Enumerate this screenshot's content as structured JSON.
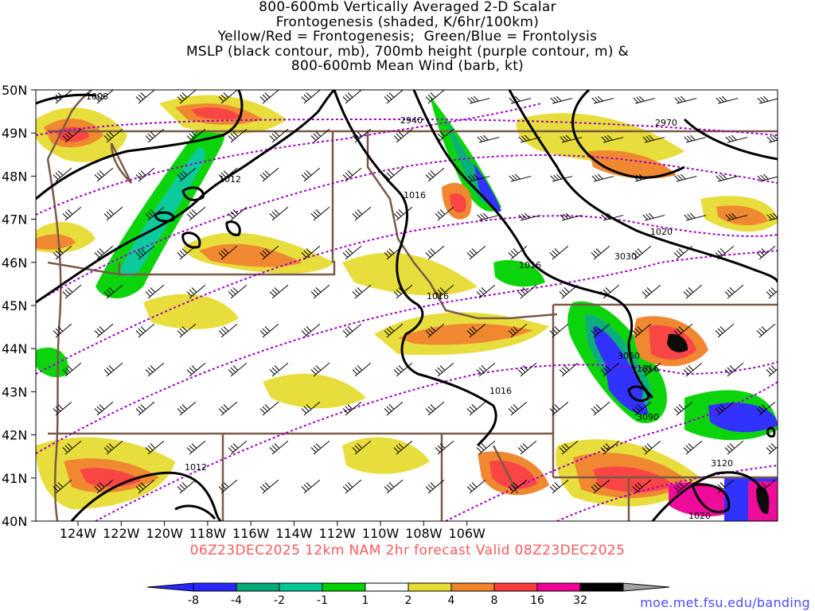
{
  "title_lines": [
    "800-600mb Vertically Averaged 2-D Scalar",
    "Frontogenesis (shaded, K/6hr/100km)",
    "Yellow/Red = Frontogenesis;  Green/Blue = Frontolysis",
    "MSLP (black contour, mb), 700mb height (purple contour, m) &",
    "800-600mb Mean Wind (barb, kt)"
  ],
  "subtitle": "06Z23DEC2025 12km NAM 2hr forecast Valid 08Z23DEC2025",
  "credit": "moe.met.fsu.edu/banding",
  "lat_labels": [
    "50N",
    "49N",
    "48N",
    "47N",
    "46N",
    "45N",
    "44N",
    "43N",
    "42N",
    "41N",
    "40N"
  ],
  "lon_labels": [
    "124W",
    "122W",
    "120W",
    "118W",
    "116W",
    "114W",
    "112W",
    "110W",
    "108W",
    "106W"
  ],
  "mslp_labels": [
    "1008",
    "1012",
    "1016",
    "1016",
    "1016",
    "1016",
    "1016",
    "1020",
    "1020",
    "1012"
  ],
  "height_labels": [
    "2940",
    "2970",
    "3030",
    "3060",
    "3090",
    "3120"
  ],
  "colorbar": {
    "ticks": [
      "-8",
      "-4",
      "-2",
      "-1",
      "1",
      "2",
      "4",
      "8",
      "16",
      "32"
    ],
    "colors": [
      "#2828ff",
      "#00aa78",
      "#00c896",
      "#00d200",
      "#ffffff",
      "#e6dc32",
      "#f08228",
      "#fa3c3c",
      "#f00096",
      "#000000"
    ],
    "left_arrow_color": "#2828ff",
    "right_arrow_color": "#a0a0a0"
  },
  "colors": {
    "mslp": "#000000",
    "height": "#a000c8",
    "borders": "#7a5a48",
    "subtitle": "#ff5a5a",
    "credit": "#4a4aff"
  }
}
